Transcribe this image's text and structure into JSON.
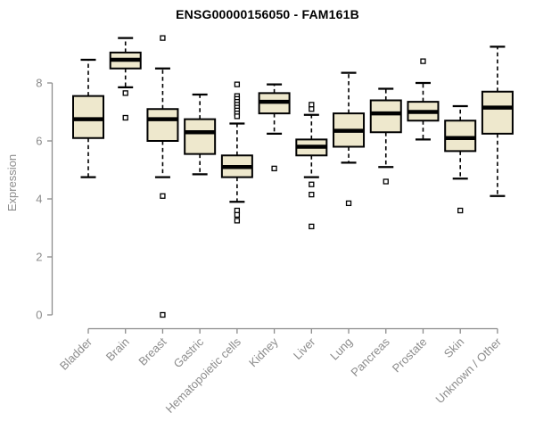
{
  "chart_data": {
    "type": "boxplot",
    "title": "ENSG00000156050 - FAM161B",
    "xlabel": "",
    "ylabel": "Expression",
    "yticks": [
      0,
      2,
      4,
      6,
      8
    ],
    "ylim": [
      -0.45,
      9.9
    ],
    "grid": false,
    "legend": "none",
    "categories": [
      "Bladder",
      "Brain",
      "Breast",
      "Gastric",
      "Hematopoietic cells",
      "Kidney",
      "Liver",
      "Lung",
      "Pancreas",
      "Prostate",
      "Skin",
      "Unknown / Other"
    ],
    "boxes": [
      {
        "category": "Bladder",
        "whisker_low": 4.75,
        "q1": 6.1,
        "median": 6.75,
        "q3": 7.55,
        "whisker_high": 8.8,
        "outliers": []
      },
      {
        "category": "Brain",
        "whisker_low": 7.85,
        "q1": 8.5,
        "median": 8.8,
        "q3": 9.05,
        "whisker_high": 9.55,
        "outliers": [
          7.65,
          6.8
        ]
      },
      {
        "category": "Breast",
        "whisker_low": 4.75,
        "q1": 6.0,
        "median": 6.75,
        "q3": 7.1,
        "whisker_high": 8.5,
        "outliers": [
          9.55,
          4.1,
          0.0
        ]
      },
      {
        "category": "Gastric",
        "whisker_low": 4.85,
        "q1": 5.55,
        "median": 6.3,
        "q3": 6.75,
        "whisker_high": 7.6,
        "outliers": []
      },
      {
        "category": "Hematopoietic cells",
        "whisker_low": 3.9,
        "q1": 4.75,
        "median": 5.1,
        "q3": 5.5,
        "whisker_high": 6.6,
        "outliers": [
          7.95,
          7.55,
          7.45,
          7.35,
          7.25,
          7.15,
          7.05,
          6.95,
          6.85,
          3.6,
          3.45,
          3.25
        ]
      },
      {
        "category": "Kidney",
        "whisker_low": 6.25,
        "q1": 6.95,
        "median": 7.35,
        "q3": 7.65,
        "whisker_high": 7.95,
        "outliers": [
          5.05
        ]
      },
      {
        "category": "Liver",
        "whisker_low": 4.75,
        "q1": 5.5,
        "median": 5.8,
        "q3": 6.05,
        "whisker_high": 6.9,
        "outliers": [
          7.25,
          7.1,
          4.5,
          4.15,
          3.05
        ]
      },
      {
        "category": "Lung",
        "whisker_low": 5.25,
        "q1": 5.8,
        "median": 6.35,
        "q3": 6.95,
        "whisker_high": 8.35,
        "outliers": [
          3.85
        ]
      },
      {
        "category": "Pancreas",
        "whisker_low": 5.1,
        "q1": 6.3,
        "median": 6.95,
        "q3": 7.4,
        "whisker_high": 7.8,
        "outliers": [
          4.6
        ]
      },
      {
        "category": "Prostate",
        "whisker_low": 6.05,
        "q1": 6.7,
        "median": 7.0,
        "q3": 7.35,
        "whisker_high": 8.0,
        "outliers": [
          8.75
        ]
      },
      {
        "category": "Skin",
        "whisker_low": 4.7,
        "q1": 5.65,
        "median": 6.1,
        "q3": 6.7,
        "whisker_high": 7.2,
        "outliers": [
          3.6
        ]
      },
      {
        "category": "Unknown / Other",
        "whisker_low": 4.1,
        "q1": 6.25,
        "median": 7.15,
        "q3": 7.7,
        "whisker_high": 9.25,
        "outliers": []
      }
    ],
    "colors": {
      "background": "#ffffff",
      "box_fill": "#EEE8CD",
      "box_border": "#000000",
      "median": "#000000",
      "whisker": "#000000",
      "outlier_fill": "#ffffff",
      "outlier_border": "#000000",
      "axis": "#8c8c8c",
      "tick_label": "#8c8c8c",
      "title": "#000000"
    }
  }
}
